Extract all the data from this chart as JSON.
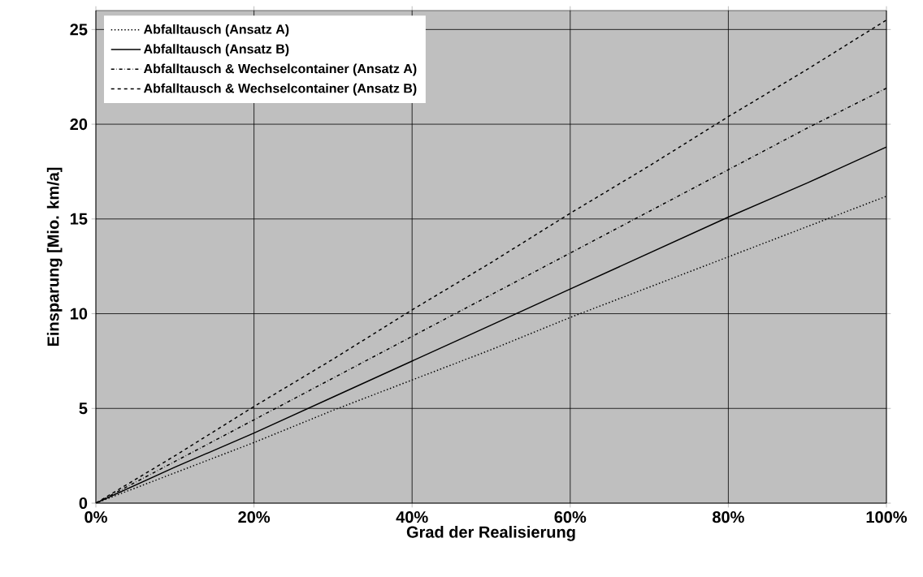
{
  "chart_data": {
    "type": "line",
    "xlabel": "Grad der Realisierung",
    "ylabel": "Einsparung [Mio. km/a]",
    "x": [
      0,
      10,
      20,
      30,
      40,
      50,
      60,
      70,
      80,
      90,
      100
    ],
    "series": [
      {
        "name": "Abfalltausch (Ansatz A)",
        "color": "#000000",
        "line_style": "dotted",
        "values": [
          0,
          1.6,
          3.2,
          4.9,
          6.5,
          8.1,
          9.8,
          11.4,
          13.0,
          14.6,
          16.2
        ]
      },
      {
        "name": "Abfalltausch (Ansatz B)",
        "color": "#000000",
        "line_style": "solid",
        "values": [
          0,
          1.9,
          3.7,
          5.6,
          7.5,
          9.4,
          11.3,
          13.2,
          15.1,
          16.9,
          18.8
        ]
      },
      {
        "name": "Abfalltausch & Wechselcontainer (Ansatz A)",
        "color": "#000000",
        "line_style": "dashdot",
        "values": [
          0,
          2.2,
          4.4,
          6.6,
          8.8,
          11.0,
          13.2,
          15.4,
          17.6,
          19.8,
          21.9
        ]
      },
      {
        "name": "Abfalltausch & Wechselcontainer (Ansatz B)",
        "color": "#000000",
        "line_style": "dashed",
        "values": [
          0,
          2.5,
          5.1,
          7.6,
          10.2,
          12.7,
          15.3,
          17.8,
          20.4,
          22.9,
          25.5
        ]
      }
    ],
    "xlim": [
      0,
      100
    ],
    "xticks": [
      {
        "value": 0,
        "label": "0%"
      },
      {
        "value": 20,
        "label": "20%"
      },
      {
        "value": 40,
        "label": "40%"
      },
      {
        "value": 60,
        "label": "60%"
      },
      {
        "value": 80,
        "label": "80%"
      },
      {
        "value": 100,
        "label": "100%"
      }
    ],
    "ylim": [
      0,
      26
    ],
    "yticks": [
      0,
      5,
      10,
      15,
      20,
      25
    ],
    "grid": true,
    "legend": "top left",
    "marker": "none"
  }
}
